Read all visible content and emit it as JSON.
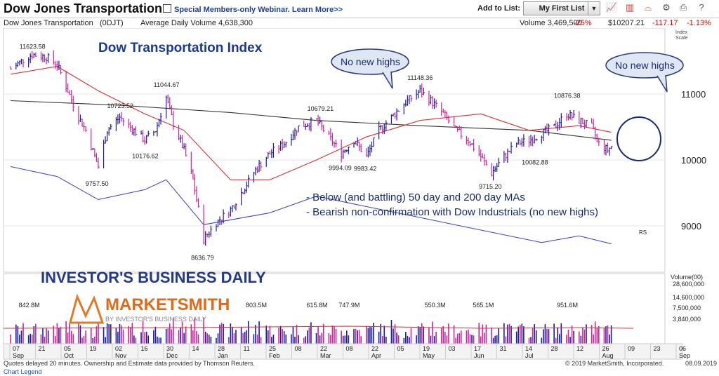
{
  "header": {
    "title": "Dow Jones Transportation",
    "webinar_link": "Special Members-only Webinar. Learn More>>",
    "add_to_list_label": "Add to List:",
    "list_select_value": "My First List"
  },
  "info_bar": {
    "name": "Dow Jones Transportation",
    "symbol": "(0DJT)",
    "avg_volume": "Average Daily Volume 4,638,300",
    "volume": "Volume 3,469,500",
    "volume_pct": "-25%",
    "price": "$10207.21",
    "change": "-117.17",
    "change_pct": "-1.13%",
    "scale_label_1": "Index",
    "scale_label_2": "Scale"
  },
  "chart_data": {
    "type": "candlestick",
    "title": "Dow Transportation Index",
    "price_axis": {
      "ticks": [
        11000,
        10000,
        9000
      ],
      "range": [
        8300,
        12000
      ]
    },
    "volume_axis": {
      "label": "Volume(00)",
      "ticks": [
        "28,600,000",
        "14,600,000",
        "7,500,000",
        "3,840,000"
      ]
    },
    "annotated_prices": [
      {
        "label": "11623.58",
        "x_date": "2018-09-19",
        "value": 11623.58
      },
      {
        "label": "9757.50",
        "x_date": "2018-10-26",
        "value": 9757.5
      },
      {
        "label": "10723.52",
        "x_date": "2018-11-07",
        "value": 10723.52
      },
      {
        "label": "10176.62",
        "x_date": "2018-11-21",
        "value": 10176.62
      },
      {
        "label": "11044.67",
        "x_date": "2018-12-03",
        "value": 11044.67
      },
      {
        "label": "8636.79",
        "x_date": "2018-12-24",
        "value": 8636.79
      },
      {
        "label": "10679.21",
        "x_date": "2019-02-27",
        "value": 10679.21
      },
      {
        "label": "9994.09",
        "x_date": "2019-03-11",
        "value": 9994.09
      },
      {
        "label": "9983.42",
        "x_date": "2019-03-25",
        "value": 9983.42
      },
      {
        "label": "11148.36",
        "x_date": "2019-04-24",
        "value": 11148.36
      },
      {
        "label": "9715.20",
        "x_date": "2019-06-03",
        "value": 9715.2
      },
      {
        "label": "10082.88",
        "x_date": "2019-06-27",
        "value": 10082.88
      },
      {
        "label": "10876.38",
        "x_date": "2019-07-15",
        "value": 10876.38
      }
    ],
    "price_path": [
      [
        "2018-09-07",
        11380
      ],
      [
        "2018-09-13",
        11500
      ],
      [
        "2018-09-19",
        11600
      ],
      [
        "2018-09-27",
        11560
      ],
      [
        "2018-10-03",
        11450
      ],
      [
        "2018-10-09",
        11050
      ],
      [
        "2018-10-15",
        10650
      ],
      [
        "2018-10-19",
        10450
      ],
      [
        "2018-10-26",
        9900
      ],
      [
        "2018-10-31",
        10450
      ],
      [
        "2018-11-07",
        10650
      ],
      [
        "2018-11-13",
        10500
      ],
      [
        "2018-11-21",
        10300
      ],
      [
        "2018-11-27",
        10450
      ],
      [
        "2018-12-03",
        10950
      ],
      [
        "2018-12-07",
        10550
      ],
      [
        "2018-12-13",
        10150
      ],
      [
        "2018-12-18",
        9700
      ],
      [
        "2018-12-24",
        8800
      ],
      [
        "2018-12-31",
        9050
      ],
      [
        "2019-01-08",
        9250
      ],
      [
        "2019-01-14",
        9500
      ],
      [
        "2019-01-22",
        9850
      ],
      [
        "2019-01-30",
        10100
      ],
      [
        "2019-02-07",
        10250
      ],
      [
        "2019-02-15",
        10500
      ],
      [
        "2019-02-25",
        10600
      ],
      [
        "2019-03-04",
        10350
      ],
      [
        "2019-03-11",
        10100
      ],
      [
        "2019-03-18",
        10300
      ],
      [
        "2019-03-25",
        10050
      ],
      [
        "2019-04-01",
        10450
      ],
      [
        "2019-04-08",
        10650
      ],
      [
        "2019-04-15",
        10850
      ],
      [
        "2019-04-24",
        11050
      ],
      [
        "2019-04-30",
        10900
      ],
      [
        "2019-05-07",
        10700
      ],
      [
        "2019-05-14",
        10450
      ],
      [
        "2019-05-21",
        10300
      ],
      [
        "2019-05-28",
        10050
      ],
      [
        "2019-06-03",
        9800
      ],
      [
        "2019-06-10",
        10050
      ],
      [
        "2019-06-17",
        10250
      ],
      [
        "2019-06-24",
        10300
      ],
      [
        "2019-07-01",
        10400
      ],
      [
        "2019-07-08",
        10500
      ],
      [
        "2019-07-15",
        10700
      ],
      [
        "2019-07-22",
        10600
      ],
      [
        "2019-07-29",
        10500
      ],
      [
        "2019-08-02",
        10250
      ],
      [
        "2019-08-07",
        10150
      ],
      [
        "2019-08-09",
        10207
      ]
    ],
    "ma50": [
      [
        "2018-09-07",
        11300
      ],
      [
        "2018-10-03",
        11420
      ],
      [
        "2018-10-26",
        11050
      ],
      [
        "2018-11-21",
        10700
      ],
      [
        "2018-12-13",
        10450
      ],
      [
        "2019-01-08",
        9700
      ],
      [
        "2019-01-30",
        9700
      ],
      [
        "2019-02-25",
        10000
      ],
      [
        "2019-03-25",
        10350
      ],
      [
        "2019-04-24",
        10600
      ],
      [
        "2019-05-28",
        10700
      ],
      [
        "2019-06-24",
        10450
      ],
      [
        "2019-07-22",
        10520
      ],
      [
        "2019-08-09",
        10420
      ]
    ],
    "ma200": [
      [
        "2018-09-07",
        10900
      ],
      [
        "2018-11-07",
        10830
      ],
      [
        "2019-01-08",
        10720
      ],
      [
        "2019-02-25",
        10600
      ],
      [
        "2019-04-24",
        10520
      ],
      [
        "2019-06-24",
        10450
      ],
      [
        "2019-08-09",
        10300
      ]
    ],
    "rs_line": [
      [
        "2018-09-07",
        9900
      ],
      [
        "2018-10-03",
        9750
      ],
      [
        "2018-10-26",
        9400
      ],
      [
        "2018-11-21",
        9550
      ],
      [
        "2018-12-03",
        9700
      ],
      [
        "2018-12-24",
        9020
      ],
      [
        "2019-01-30",
        9200
      ],
      [
        "2019-02-25",
        9450
      ],
      [
        "2019-07-01",
        8750
      ],
      [
        "2019-07-22",
        8850
      ],
      [
        "2019-08-09",
        8730
      ]
    ],
    "volume_labels": [
      {
        "label": "842.8M",
        "x_date": "2018-09-17"
      },
      {
        "label": "803.5M",
        "x_date": "2019-01-22"
      },
      {
        "label": "615.8M",
        "x_date": "2019-02-25"
      },
      {
        "label": "747.9M",
        "x_date": "2019-03-15"
      },
      {
        "label": "550.3M",
        "x_date": "2019-05-02"
      },
      {
        "label": "565.1M",
        "x_date": "2019-05-29"
      },
      {
        "label": "951.6M",
        "x_date": "2019-07-15"
      }
    ],
    "date_axis": [
      {
        "day": "07",
        "month": "Sep"
      },
      {
        "day": "21",
        "month": ""
      },
      {
        "day": "05",
        "month": "Oct"
      },
      {
        "day": "19",
        "month": ""
      },
      {
        "day": "02",
        "month": "Nov"
      },
      {
        "day": "16",
        "month": ""
      },
      {
        "day": "30",
        "month": "Dec"
      },
      {
        "day": "14",
        "month": ""
      },
      {
        "day": "28",
        "month": "Jan"
      },
      {
        "day": "11",
        "month": ""
      },
      {
        "day": "25",
        "month": "Feb"
      },
      {
        "day": "08",
        "month": ""
      },
      {
        "day": "22",
        "month": "Mar"
      },
      {
        "day": "08",
        "month": ""
      },
      {
        "day": "22",
        "month": "Apr"
      },
      {
        "day": "05",
        "month": ""
      },
      {
        "day": "19",
        "month": "May"
      },
      {
        "day": "03",
        "month": ""
      },
      {
        "day": "17",
        "month": "Jun"
      },
      {
        "day": "31",
        "month": ""
      },
      {
        "day": "14",
        "month": "Jul"
      },
      {
        "day": "28",
        "month": ""
      },
      {
        "day": "12",
        "month": ""
      },
      {
        "day": "26",
        "month": "Aug"
      },
      {
        "day": "09",
        "month": ""
      },
      {
        "day": "23",
        "month": ""
      },
      {
        "day": "06",
        "month": "Sep"
      }
    ],
    "callouts": [
      "No new highs",
      "No new highs"
    ],
    "notes": [
      "- Below (and battling) 50 day and 200 day MAs",
      "- Bearish non-confirmation with Dow Industrials (no new highs)"
    ],
    "rs_label": "RS",
    "colors": {
      "up": "#1a1aa6",
      "down": "#d0229a",
      "ma50": "#e03030",
      "ma200": "#333333",
      "rs": "#3b3bd0",
      "callout": "#dfe7f4"
    }
  },
  "branding": {
    "ibd": "INVESTOR'S BUSINESS DAILY",
    "ms_name": "MARKETSMITH",
    "ms_sub": "BY INVESTOR'S BUSINESS DAILY"
  },
  "footer": {
    "delay_note": "Quotes delayed 20 minutes. Ownership and Estimate data provided by Thomson Reuters.",
    "legend_link": "Chart Legend",
    "copyright": "© 2019 MarketSmith, Incorporated.",
    "date": "08.09.2019"
  }
}
